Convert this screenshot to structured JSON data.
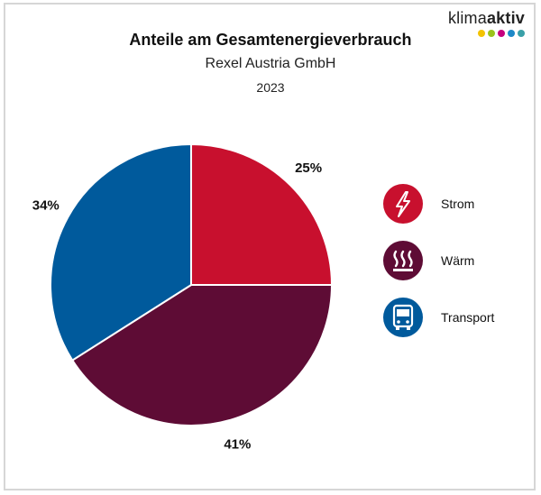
{
  "logo": {
    "text_light": "klima",
    "text_bold": "aktiv",
    "dot_colors": [
      "#f3c300",
      "#9bc31c",
      "#c6007e",
      "#1e88c7",
      "#3aa0a8"
    ]
  },
  "header": {
    "title": "Anteile am Gesamtenergieverbrauch",
    "subtitle": "Rexel Austria GmbH",
    "year": "2023"
  },
  "chart_data": {
    "type": "pie",
    "title": "Anteile am Gesamtenergieverbrauch",
    "subtitle": "Rexel Austria GmbH",
    "year": "2023",
    "slices": [
      {
        "name": "Strom",
        "value": 25,
        "label": "25%",
        "color": "#c8102e",
        "icon": "lightning-icon"
      },
      {
        "name": "Wärm",
        "value": 41,
        "label": "41%",
        "color": "#5e0c35",
        "icon": "heat-icon"
      },
      {
        "name": "Transport",
        "value": 34,
        "label": "34%",
        "color": "#005a9c",
        "icon": "bus-icon"
      }
    ],
    "start_angle_deg": 0,
    "direction": "clockwise",
    "legend_position": "right"
  }
}
